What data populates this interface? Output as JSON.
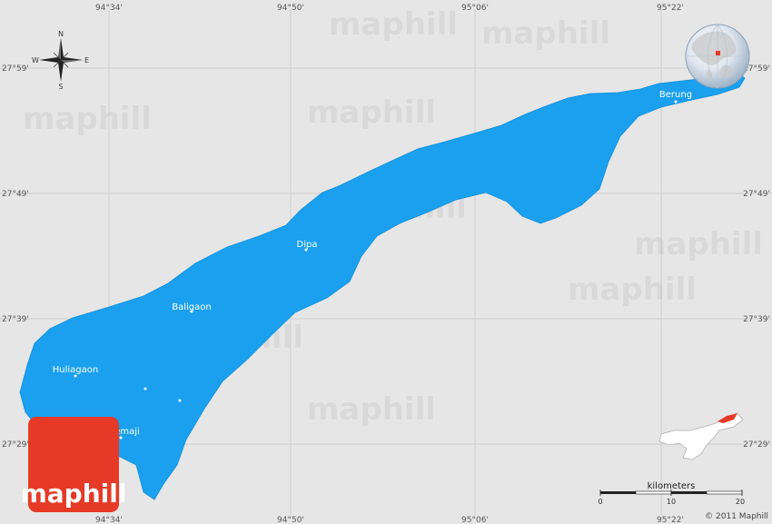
{
  "map": {
    "region_color": "#1aa0ee",
    "background_color": "#e6e6e6",
    "top_longitudes": [
      "94°34'",
      "94°50'",
      "95°06'",
      "95°22'"
    ],
    "bottom_longitudes": [
      "94°34'",
      "94°50'",
      "95°06'",
      "95°22'"
    ],
    "left_latitudes": [
      "27°59'",
      "27°49'",
      "27°39'",
      "27°29'"
    ],
    "right_latitudes": [
      "27°59'",
      "27°49'",
      "27°39'",
      "27°29'"
    ],
    "places": [
      {
        "name": "Berung"
      },
      {
        "name": "Dipa"
      },
      {
        "name": "Baligaon"
      },
      {
        "name": "Huliagaon"
      },
      {
        "name": "Dhemaji"
      }
    ],
    "watermark": "maphill"
  },
  "compass": {
    "n": "N",
    "s": "S",
    "e": "E",
    "w": "W"
  },
  "scale": {
    "title": "kilometers",
    "ticks": [
      "0",
      "10",
      "20"
    ]
  },
  "copyright": "© 2011 Maphill",
  "logo": {
    "text": "maphill",
    "color": "#e63a26"
  },
  "icons": [
    "compass-rose-icon",
    "globe-icon",
    "state-locator-icon"
  ]
}
